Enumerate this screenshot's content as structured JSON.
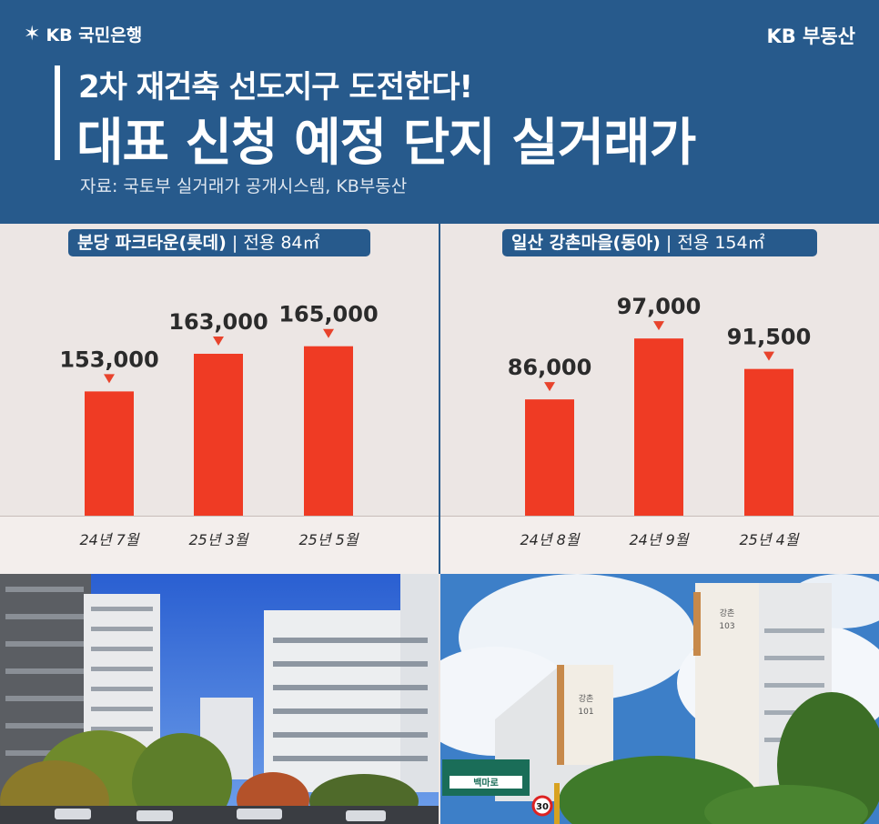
{
  "header": {
    "brand_left": "KB 국민은행",
    "brand_right": "KB 부동산",
    "subtitle": "2차 재건축 선도지구 도전한다!",
    "title": "대표 신청 예정 단지 실거래가",
    "source": "자료: 국토부 실거래가 공개시스템, KB부동산"
  },
  "colors": {
    "header_bg": "#275a8c",
    "bar": "#ef3b24",
    "marker": "#e8432c",
    "background": "#ece6e4"
  },
  "chart_data": [
    {
      "type": "bar",
      "title": "분당 파크타운(롯데)",
      "title_sep": "|",
      "title_spec": "전용 84㎡",
      "categories": [
        "24년 7월",
        "25년 3월",
        "25년 5월"
      ],
      "values": [
        153000,
        163000,
        165000
      ],
      "value_labels": [
        "153,000",
        "163,000",
        "165,000"
      ],
      "ylim": [
        120000,
        170000
      ],
      "grid": false,
      "legend": "none"
    },
    {
      "type": "bar",
      "title": "일산 강촌마을(동아)",
      "title_sep": "|",
      "title_spec": "전용 154㎡",
      "categories": [
        "24년 8월",
        "24년 9월",
        "25년 4월"
      ],
      "values": [
        86000,
        97000,
        91500
      ],
      "value_labels": [
        "86,000",
        "97,000",
        "91,500"
      ],
      "ylim": [
        65000,
        99000
      ],
      "grid": false,
      "legend": "none"
    }
  ],
  "photos": [
    {
      "name": "bundang-apartment-photo",
      "signs": []
    },
    {
      "name": "ilsan-apartment-photo",
      "signs": [
        "강촌",
        "101",
        "103",
        "백마로",
        "30"
      ]
    }
  ]
}
